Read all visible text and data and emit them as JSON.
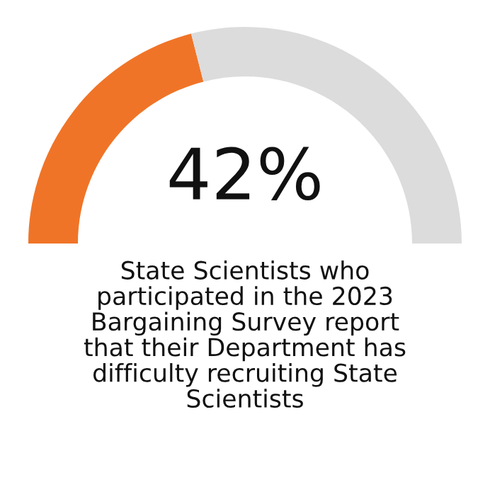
{
  "chart_data": {
    "type": "donut",
    "categories": [
      null,
      null
    ],
    "values": [
      42,
      58
    ],
    "colors": [
      "#f07427",
      "#dcdcdc"
    ],
    "title": "42%",
    "annotations": [
      "State Scientists who\nparticipated in the 2023\nBargaining Survey report\nthat their Department has\ndifficulty recruiting State\nScientists"
    ]
  }
}
